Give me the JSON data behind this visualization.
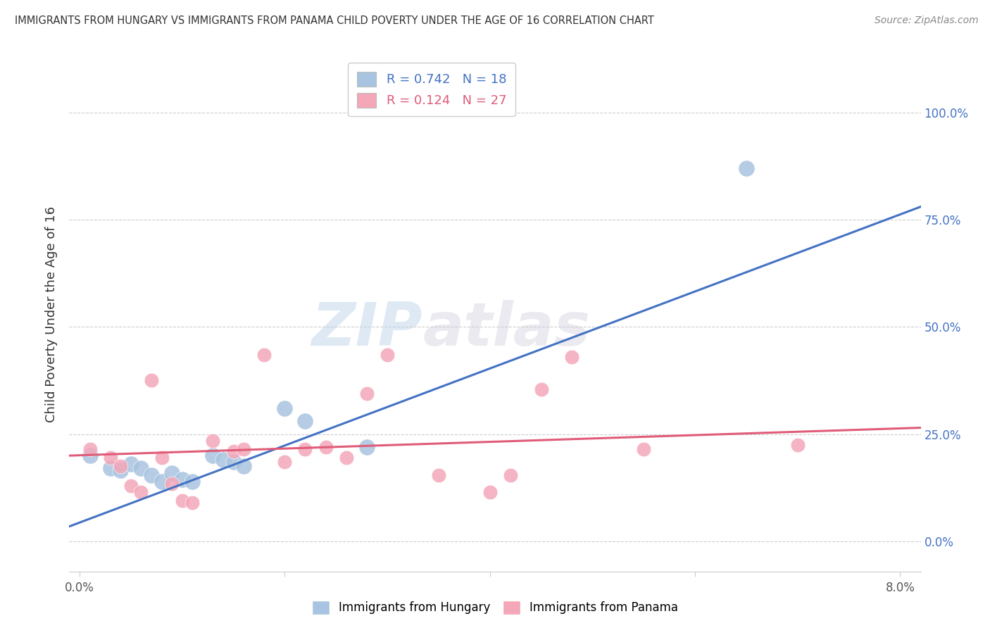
{
  "title": "IMMIGRANTS FROM HUNGARY VS IMMIGRANTS FROM PANAMA CHILD POVERTY UNDER THE AGE OF 16 CORRELATION CHART",
  "source": "Source: ZipAtlas.com",
  "ylabel": "Child Poverty Under the Age of 16",
  "xlim": [
    -0.001,
    0.082
  ],
  "ylim": [
    -0.07,
    1.13
  ],
  "xtick_positions": [
    0.0,
    0.02,
    0.04,
    0.06,
    0.08
  ],
  "xtick_labels": [
    "0.0%",
    "",
    "",
    "",
    "8.0%"
  ],
  "ytick_positions": [
    0.0,
    0.25,
    0.5,
    0.75,
    1.0
  ],
  "ytick_labels_right": [
    "0.0%",
    "25.0%",
    "50.0%",
    "75.0%",
    "100.0%"
  ],
  "legend_hungary_R": "0.742",
  "legend_hungary_N": "18",
  "legend_panama_R": "0.124",
  "legend_panama_N": "27",
  "watermark_zip": "ZIP",
  "watermark_atlas": "atlas",
  "hungary_color": "#a8c4e0",
  "panama_color": "#f4a7b9",
  "hungary_line_color": "#4472c4",
  "panama_line_color": "#e05c78",
  "hungary_points_x": [
    0.001,
    0.003,
    0.004,
    0.005,
    0.006,
    0.007,
    0.008,
    0.009,
    0.01,
    0.011,
    0.013,
    0.014,
    0.015,
    0.016,
    0.02,
    0.022,
    0.028,
    0.065
  ],
  "hungary_points_y": [
    0.2,
    0.17,
    0.165,
    0.18,
    0.17,
    0.155,
    0.14,
    0.16,
    0.145,
    0.14,
    0.2,
    0.19,
    0.185,
    0.175,
    0.31,
    0.28,
    0.22,
    0.87
  ],
  "panama_points_x": [
    0.001,
    0.003,
    0.004,
    0.005,
    0.006,
    0.007,
    0.008,
    0.009,
    0.01,
    0.011,
    0.013,
    0.015,
    0.016,
    0.018,
    0.02,
    0.022,
    0.024,
    0.026,
    0.028,
    0.03,
    0.035,
    0.04,
    0.042,
    0.045,
    0.048,
    0.055,
    0.07
  ],
  "panama_points_y": [
    0.215,
    0.195,
    0.175,
    0.13,
    0.115,
    0.375,
    0.195,
    0.135,
    0.095,
    0.09,
    0.235,
    0.21,
    0.215,
    0.435,
    0.185,
    0.215,
    0.22,
    0.195,
    0.345,
    0.435,
    0.155,
    0.115,
    0.155,
    0.355,
    0.43,
    0.215,
    0.225
  ],
  "hungary_line_x": [
    -0.001,
    0.082
  ],
  "hungary_line_y": [
    0.035,
    0.78
  ],
  "panama_line_x": [
    -0.001,
    0.082
  ],
  "panama_line_y": [
    0.2,
    0.265
  ],
  "bubble_size_hungary": 280,
  "bubble_size_panama": 220
}
